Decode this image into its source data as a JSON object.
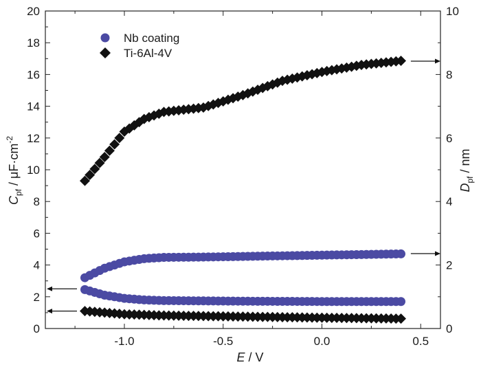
{
  "chart_data": {
    "type": "scatter",
    "x_axis": {
      "label_var": "E",
      "label_unit": " / V",
      "range": [
        -1.4,
        0.6
      ],
      "ticks": [
        -1.0,
        -0.5,
        0.0,
        0.5
      ],
      "tick_labels": [
        "-1.0",
        "-0.5",
        "0.0",
        "0.5"
      ]
    },
    "y_left": {
      "label_var": "C",
      "label_sub": "pf",
      "label_unit": " / μF·cm",
      "label_sup": "-2",
      "range": [
        0,
        20
      ],
      "ticks": [
        0,
        2,
        4,
        6,
        8,
        10,
        12,
        14,
        16,
        18,
        20
      ],
      "tick_labels": [
        "0",
        "2",
        "4",
        "6",
        "8",
        "10",
        "12",
        "14",
        "16",
        "18",
        "20"
      ]
    },
    "y_right": {
      "label_var": "D",
      "label_sub": "pf",
      "label_unit": " / nm",
      "range": [
        0,
        10
      ],
      "ticks": [
        0,
        2,
        4,
        6,
        8,
        10
      ],
      "tick_labels": [
        "0",
        "2",
        "4",
        "6",
        "8",
        "10"
      ]
    },
    "legend": {
      "placement": "top-left",
      "items": [
        {
          "name": "Nb coating",
          "marker": "circle",
          "color": "#4b4aa3"
        },
        {
          "name": "Ti-6Al-4V",
          "marker": "diamond",
          "color": "#111111"
        }
      ]
    },
    "series": [
      {
        "name": "Nb coating C_pf",
        "marker": "circle",
        "color": "#4b4aa3",
        "axis": "left",
        "anchors_x": [
          -1.2,
          -1.1,
          -1.0,
          -0.9,
          -0.8,
          -0.4,
          0.0,
          0.4
        ],
        "anchors_y": [
          2.45,
          2.1,
          1.9,
          1.8,
          1.76,
          1.72,
          1.7,
          1.7
        ]
      },
      {
        "name": "Nb coating D_pf",
        "marker": "circle",
        "color": "#4b4aa3",
        "axis": "right",
        "anchors_x": [
          -1.2,
          -1.1,
          -1.0,
          -0.9,
          -0.8,
          -0.6,
          -0.2,
          0.0,
          0.4
        ],
        "anchors_y": [
          1.6,
          1.9,
          2.1,
          2.2,
          2.24,
          2.25,
          2.29,
          2.31,
          2.35
        ]
      },
      {
        "name": "Ti-6Al-4V C_pf",
        "marker": "diamond",
        "color": "#111111",
        "axis": "left",
        "anchors_x": [
          -1.2,
          -1.0,
          -0.8,
          -0.4,
          0.0,
          0.4
        ],
        "anchors_y": [
          1.1,
          0.9,
          0.82,
          0.75,
          0.68,
          0.62
        ]
      },
      {
        "name": "Ti-6Al-4V D_pf",
        "marker": "diamond",
        "color": "#111111",
        "axis": "right",
        "anchors_x": [
          -1.2,
          -1.1,
          -1.0,
          -0.9,
          -0.8,
          -0.6,
          -0.4,
          -0.2,
          0.0,
          0.2,
          0.4
        ],
        "anchors_y": [
          4.65,
          5.4,
          6.2,
          6.6,
          6.82,
          6.96,
          7.35,
          7.8,
          8.08,
          8.3,
          8.43
        ]
      }
    ],
    "x_step": 0.025,
    "annotations": [
      {
        "name": "arrow-right-ti-dpf",
        "direction": "right",
        "axis": "right",
        "y": 8.42
      },
      {
        "name": "arrow-right-nb-dpf",
        "direction": "right",
        "axis": "right",
        "y": 2.36
      },
      {
        "name": "arrow-left-nb-cpf",
        "direction": "left",
        "axis": "left",
        "y": 2.5
      },
      {
        "name": "arrow-left-ti-cpf",
        "direction": "left",
        "axis": "left",
        "y": 1.1
      }
    ]
  }
}
